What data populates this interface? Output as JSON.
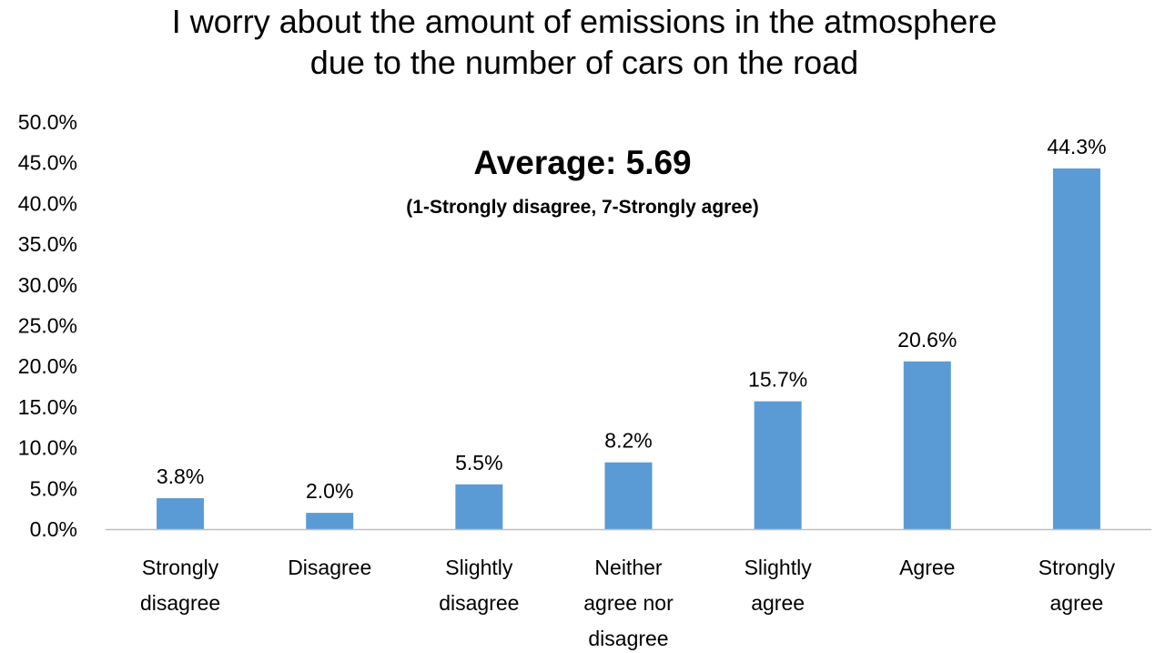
{
  "chart_data": {
    "type": "bar",
    "title_lines": [
      "I worry about the amount of emissions in the atmosphere",
      "due to the number of cars on the road"
    ],
    "annotation": {
      "average": "Average: 5.69",
      "scale": "(1-Strongly disagree, 7-Strongly agree)"
    },
    "categories": [
      [
        "Strongly",
        "disagree"
      ],
      [
        "Disagree"
      ],
      [
        "Slightly",
        "disagree"
      ],
      [
        "Neither",
        "agree nor",
        "disagree"
      ],
      [
        "Slightly",
        "agree"
      ],
      [
        "Agree"
      ],
      [
        "Strongly",
        "agree"
      ]
    ],
    "values": [
      3.8,
      2.0,
      5.5,
      8.2,
      15.7,
      20.6,
      44.3
    ],
    "data_labels": [
      "3.8%",
      "2.0%",
      "5.5%",
      "8.2%",
      "15.7%",
      "20.6%",
      "44.3%"
    ],
    "ylim": [
      0,
      50
    ],
    "y_ticks": [
      0,
      5,
      10,
      15,
      20,
      25,
      30,
      35,
      40,
      45,
      50
    ],
    "y_tick_labels": [
      "0.0%",
      "5.0%",
      "10.0%",
      "15.0%",
      "20.0%",
      "25.0%",
      "30.0%",
      "35.0%",
      "40.0%",
      "45.0%",
      "50.0%"
    ],
    "xlabel": "",
    "ylabel": "",
    "grid": false,
    "legend": "none",
    "colors": {
      "bar": "#5B9BD5",
      "axis": "#BFBFBF",
      "text": "#000000"
    }
  }
}
